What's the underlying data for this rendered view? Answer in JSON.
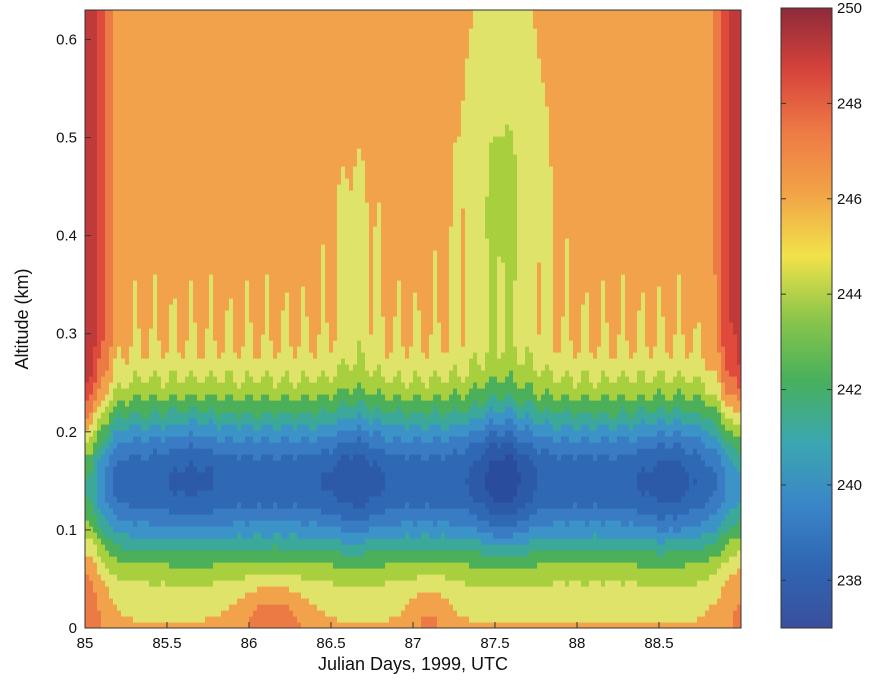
{
  "chart_data": {
    "type": "heatmap",
    "subtype": "filled-contour",
    "xlabel": "Julian Days, 1999, UTC",
    "ylabel": "Altitude (km)",
    "xlim": [
      85,
      89
    ],
    "ylim": [
      0,
      0.63
    ],
    "x_ticks": [
      85,
      85.5,
      86,
      86.5,
      87,
      87.5,
      88,
      88.5
    ],
    "x_tick_labels": [
      "85",
      "85.5",
      "86",
      "86.5",
      "87",
      "87.5",
      "88",
      "88.5"
    ],
    "y_ticks": [
      0,
      0.1,
      0.2,
      0.3,
      0.4,
      0.5,
      0.6
    ],
    "y_tick_labels": [
      "0",
      "0.1",
      "0.2",
      "0.3",
      "0.4",
      "0.5",
      "0.6"
    ],
    "colorbar": {
      "range": [
        237,
        250
      ],
      "ticks": [
        238,
        240,
        242,
        244,
        246,
        248,
        250
      ],
      "tick_labels": [
        "238",
        "240",
        "242",
        "244",
        "246",
        "248",
        "250"
      ]
    },
    "contour_levels": [
      238,
      239,
      240,
      241,
      242,
      243,
      244,
      245,
      246,
      247,
      248,
      249
    ],
    "colors": [
      "#2b4c9c",
      "#2d5aa8",
      "#2f68b4",
      "#3a7cc4",
      "#3b93c8",
      "#3ba89a",
      "#4cb05a",
      "#a8cf3e",
      "#dfe36a",
      "#f2a24a",
      "#ec7a45",
      "#e04a3c",
      "#c03a3a",
      "#8e2a3a"
    ],
    "colorbar_colors": [
      "#3a4f9c",
      "#2f66b3",
      "#3a86c8",
      "#3ba7b0",
      "#48b05c",
      "#8cc64a",
      "#f2e24a",
      "#f2a347",
      "#ee7a45",
      "#d6433b",
      "#8e2a3a"
    ],
    "features": [
      {
        "x": 85.65,
        "y": 0.16,
        "min_value": 240.5
      },
      {
        "x": 86.65,
        "y": 0.14,
        "min_value": 239
      },
      {
        "x": 87.55,
        "y": 0.14,
        "min_value": 238
      },
      {
        "x": 88.55,
        "y": 0.15,
        "min_value": 239.5
      },
      {
        "x": 85.03,
        "y": 0.55,
        "max_value": 250
      },
      {
        "x": 88.95,
        "y": 0.55,
        "max_value": 249
      }
    ]
  }
}
